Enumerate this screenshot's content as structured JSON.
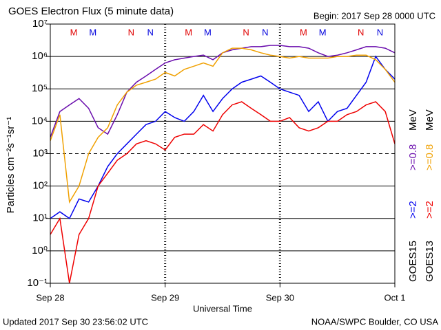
{
  "chart_data": {
    "type": "line",
    "title": "GOES Electron Flux (5 minute data)",
    "subtitle": "Begin: 2017 Sep 28 0000 UTC",
    "xlabel": "Universal Time",
    "ylabel": "Particles cm⁻²s⁻¹sr⁻¹",
    "footer_left": "Updated 2017 Sep 30 23:56:02 UTC",
    "footer_right": "NOAA/SWPC Boulder, CO USA",
    "log_y": true,
    "grid": true,
    "threshold": 1000,
    "xlim": [
      0,
      72
    ],
    "xticks": [
      {
        "value": 0,
        "label": "Sep 28"
      },
      {
        "value": 24,
        "label": "Sep 29"
      },
      {
        "value": 48,
        "label": "Sep 30"
      },
      {
        "value": 72,
        "label": "Oct 1"
      }
    ],
    "ylim": [
      0.1,
      10000000
    ],
    "yticks": [
      {
        "value": 0.1,
        "label": "10⁻¹"
      },
      {
        "value": 1,
        "label": "10⁰"
      },
      {
        "value": 10,
        "label": "10¹"
      },
      {
        "value": 100,
        "label": "10²"
      },
      {
        "value": 1000,
        "label": "10³"
      },
      {
        "value": 10000,
        "label": "10⁴"
      },
      {
        "value": 100000,
        "label": "10⁵"
      },
      {
        "value": 1000000,
        "label": "10⁶"
      },
      {
        "value": 10000000,
        "label": "10⁷"
      }
    ],
    "annotations": [
      {
        "text": "M",
        "x": 4.9,
        "color": "#e00000"
      },
      {
        "text": "M",
        "x": 8.9,
        "color": "#0000dd"
      },
      {
        "text": "N",
        "x": 16.9,
        "color": "#e00000"
      },
      {
        "text": "N",
        "x": 20.9,
        "color": "#0000dd"
      },
      {
        "text": "M",
        "x": 28.9,
        "color": "#e00000"
      },
      {
        "text": "M",
        "x": 32.9,
        "color": "#0000dd"
      },
      {
        "text": "N",
        "x": 40.9,
        "color": "#e00000"
      },
      {
        "text": "N",
        "x": 44.9,
        "color": "#0000dd"
      },
      {
        "text": "M",
        "x": 52.9,
        "color": "#e00000"
      },
      {
        "text": "M",
        "x": 56.9,
        "color": "#0000dd"
      },
      {
        "text": "N",
        "x": 64.9,
        "color": "#e00000"
      },
      {
        "text": "N",
        "x": 68.9,
        "color": "#0000dd"
      }
    ],
    "legend": [
      {
        "satellite": "GOES15",
        "unit": "MeV"
      },
      {
        "satellite": "GOES13",
        "unit": "MeV"
      }
    ],
    "x": [
      0,
      2,
      4,
      6,
      8,
      10,
      12,
      14,
      16,
      18,
      20,
      22,
      24,
      26,
      28,
      30,
      32,
      34,
      36,
      38,
      40,
      42,
      44,
      46,
      48,
      50,
      52,
      54,
      56,
      58,
      60,
      62,
      64,
      66,
      68,
      70,
      72
    ],
    "series": [
      {
        "name": ">=2",
        "color": "#0000ee",
        "values": [
          10,
          16,
          10,
          40,
          32,
          100,
          400,
          1000,
          2000,
          4000,
          7900,
          10000,
          20000,
          13000,
          10000,
          20000,
          63000,
          20000,
          50000,
          100000,
          160000,
          200000,
          250000,
          160000,
          100000,
          79000,
          63000,
          20000,
          40000,
          10000,
          20000,
          25000,
          63000,
          160000,
          1000000,
          400000,
          200000
        ]
      },
      {
        "name": ">=0.8",
        "color": "#6a0dad",
        "values": [
          3200,
          20000,
          32000,
          50000,
          25000,
          6300,
          4000,
          16000,
          79000,
          160000,
          250000,
          400000,
          630000,
          790000,
          890000,
          1000000,
          1100000,
          790000,
          1300000,
          1600000,
          1800000,
          2000000,
          2000000,
          2200000,
          2200000,
          2000000,
          2000000,
          1800000,
          1300000,
          1000000,
          1100000,
          1300000,
          1600000,
          2000000,
          2000000,
          1800000,
          1300000
        ]
      },
      {
        "name": ">=2",
        "color": "#ee0000",
        "values": [
          3.2,
          10,
          0.1,
          3.2,
          10,
          100,
          250,
          630,
          1000,
          2000,
          2500,
          2000,
          1300,
          3200,
          4000,
          4000,
          7900,
          5000,
          16000,
          32000,
          40000,
          25000,
          16000,
          10000,
          10000,
          13000,
          6300,
          5000,
          6300,
          10000,
          10000,
          16000,
          20000,
          32000,
          40000,
          20000,
          2000
        ]
      },
      {
        "name": ">=0.8",
        "color": "#f0a000",
        "values": [
          2500,
          16000,
          32,
          100,
          1000,
          3200,
          6300,
          32000,
          79000,
          130000,
          160000,
          200000,
          320000,
          250000,
          400000,
          500000,
          630000,
          500000,
          1300000,
          1800000,
          1800000,
          1600000,
          1300000,
          1100000,
          1000000,
          890000,
          1000000,
          890000,
          890000,
          890000,
          1000000,
          1000000,
          1100000,
          1100000,
          790000,
          400000,
          160000
        ]
      }
    ]
  }
}
